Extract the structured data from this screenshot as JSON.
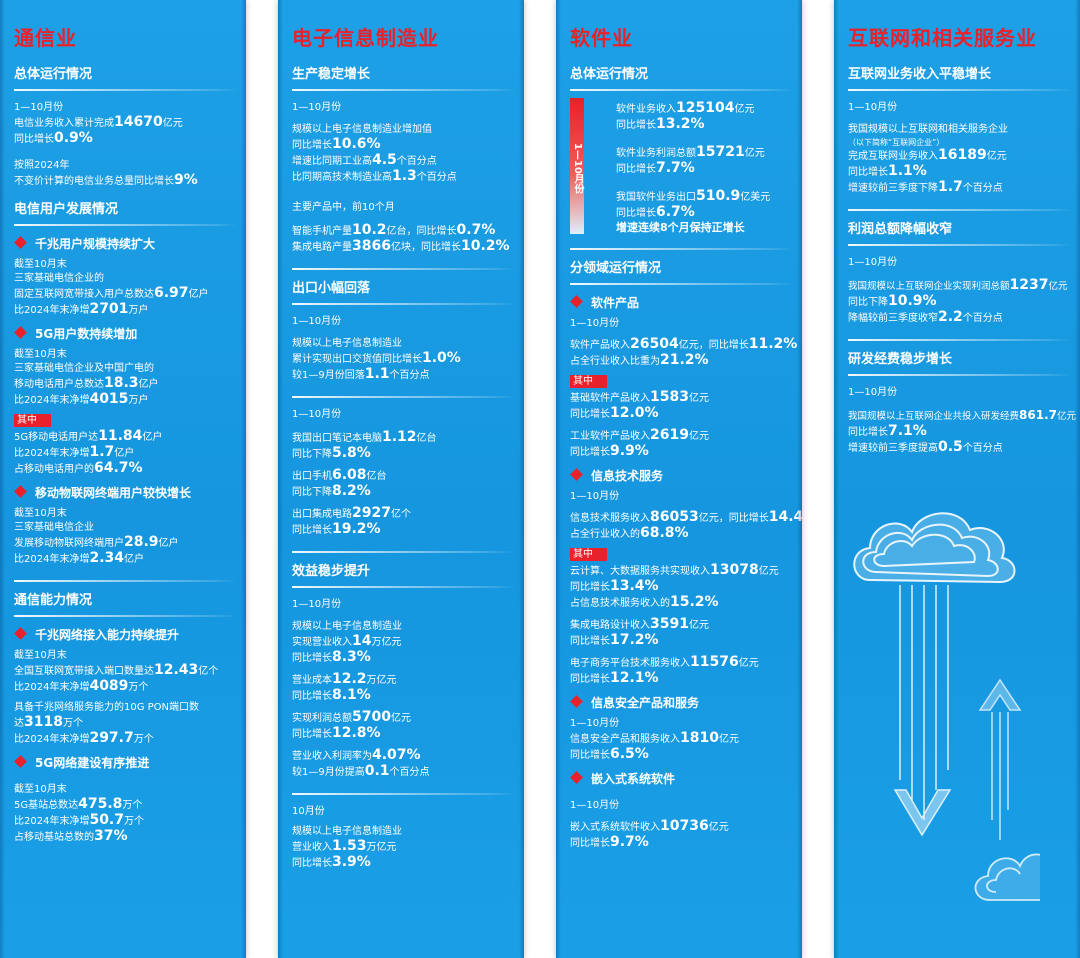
{
  "colors": {
    "column_bg": "#1596de",
    "accent_red": "#e8212b",
    "text": "#ffffff"
  },
  "icons": {
    "bullet": "red-diamond-icon",
    "decor": [
      "cloud-icon",
      "down-arrow-icon",
      "up-arrow-icon"
    ]
  },
  "col1": {
    "title": "通信业",
    "s1": {
      "title": "总体运行情况",
      "period": "1—10月份",
      "l1a": "电信业务收入累计完成",
      "l1b": "14670",
      "l1c": "亿元",
      "l2a": "同比增长",
      "l2b": "0.9%",
      "l3": "按照2024年",
      "l4a": "不变价计算的电信业务总量同比增长",
      "l4b": "9%"
    },
    "s2": {
      "title": "电信用户发展情况",
      "b1": "千兆用户规模持续扩大",
      "b1_l1": "截至10月末",
      "b1_l2": "三家基础电信企业的",
      "b1_l3a": "固定互联网宽带接入用户总数达",
      "b1_l3b": "6.97",
      "b1_l3c": "亿户",
      "b1_l4a": "比2024年末净增",
      "b1_l4b": "2701",
      "b1_l4c": "万户",
      "b2": "5G用户数持续增加",
      "b2_l1": "截至10月末",
      "b2_l2": "三家基础电信企业及中国广电的",
      "b2_l3a": "移动电话用户总数达",
      "b2_l3b": "18.3",
      "b2_l3c": "亿户",
      "b2_l4a": "比2024年末净增",
      "b2_l4b": "4015",
      "b2_l4c": "万户",
      "tag": "其中",
      "b2_l5a": "5G移动电话用户达",
      "b2_l5b": "11.84",
      "b2_l5c": "亿户",
      "b2_l6a": "比2024年末净增",
      "b2_l6b": "1.7",
      "b2_l6c": "亿户",
      "b2_l7a": "占移动电话用户的",
      "b2_l7b": "64.7%",
      "b3": "移动物联网终端用户较快增长",
      "b3_l1": "截至10月末",
      "b3_l2": "三家基础电信企业",
      "b3_l3a": "发展移动物联网终端用户",
      "b3_l3b": "28.9",
      "b3_l3c": "亿户",
      "b3_l4a": "比2024年末净增",
      "b3_l4b": "2.34",
      "b3_l4c": "亿户"
    },
    "s3": {
      "title": "通信能力情况",
      "b1": "千兆网络接入能力持续提升",
      "b1_l1": "截至10月末",
      "b1_l2a": "全国互联网宽带接入端口数量达",
      "b1_l2b": "12.43",
      "b1_l2c": "亿个",
      "b1_l3a": "比2024年末净增",
      "b1_l3b": "4089",
      "b1_l3c": "万个",
      "b1_l4": "具备千兆网络服务能力的10G PON端口数",
      "b1_l5a": "达",
      "b1_l5b": "3118",
      "b1_l5c": "万个",
      "b1_l6a": "比2024年末净增",
      "b1_l6b": "297.7",
      "b1_l6c": "万个",
      "b2": "5G网络建设有序推进",
      "b2_l1": "截至10月末",
      "b2_l2a": "5G基站总数达",
      "b2_l2b": "475.8",
      "b2_l2c": "万个",
      "b2_l3a": "比2024年末净增",
      "b2_l3b": "50.7",
      "b2_l3c": "万个",
      "b2_l4a": "占移动基站总数的",
      "b2_l4b": "37%"
    }
  },
  "col2": {
    "title": "电子信息制造业",
    "s1": {
      "title": "生产稳定增长",
      "period": "1—10月份",
      "l1": "规模以上电子信息制造业增加值",
      "l2a": "同比增长",
      "l2b": "10.6%",
      "l3a": "增速比同期工业高",
      "l3b": "4.5",
      "l3c": "个百分点",
      "l4a": "比同期高技术制造业高",
      "l4b": "1.3",
      "l4c": "个百分点",
      "sub": "主要产品中，前10个月",
      "l5a": "智能手机产量",
      "l5b": "10.2",
      "l5c": "亿台，同比增长",
      "l5d": "0.7%",
      "l6a": "集成电路产量",
      "l6b": "3866",
      "l6c": "亿块，同比增长",
      "l6d": "10.2%"
    },
    "s2": {
      "title": "出口小幅回落",
      "p1": "1—10月份",
      "l1": "规模以上电子信息制造业",
      "l2a": "累计实现出口交货值同比增长",
      "l2b": "1.0%",
      "l3a": "较1—9月份回落",
      "l3b": "1.1",
      "l3c": "个百分点",
      "p2": "1—10月份",
      "l4a": "我国出口笔记本电脑",
      "l4b": "1.12",
      "l4c": "亿台",
      "l5a": "同比下降",
      "l5b": "5.8%",
      "l6a": "出口手机",
      "l6b": "6.08",
      "l6c": "亿台",
      "l7a": "同比下降",
      "l7b": "8.2%",
      "l8a": "出口集成电路",
      "l8b": "2927",
      "l8c": "亿个",
      "l9a": "同比增长",
      "l9b": "19.2%"
    },
    "s3": {
      "title": "效益稳步提升",
      "p1": "1—10月份",
      "l1": "规模以上电子信息制造业",
      "l2a": "实现营业收入",
      "l2b": "14",
      "l2c": "万亿元",
      "l3a": "同比增长",
      "l3b": "8.3%",
      "l4a": "营业成本",
      "l4b": "12.2",
      "l4c": "万亿元",
      "l5a": "同比增长",
      "l5b": "8.1%",
      "l6a": "实现利润总额",
      "l6b": "5700",
      "l6c": "亿元",
      "l7a": "同比增长",
      "l7b": "12.8%",
      "l8a": "营业收入利润率为",
      "l8b": "4.07%",
      "l9a": "较1—9月份提高",
      "l9b": "0.1",
      "l9c": "个百分点",
      "p2": "10月份",
      "l10": "规模以上电子信息制造业",
      "l11a": "营业收入",
      "l11b": "1.53",
      "l11c": "万亿元",
      "l12a": "同比增长",
      "l12b": "3.9%"
    }
  },
  "col3": {
    "title": "软件业",
    "s1": {
      "title": "总体运行情况",
      "vlabel": "1—10月份",
      "l1a": "软件业务收入",
      "l1b": "125104",
      "l1c": "亿元",
      "l2a": "同比增长",
      "l2b": "13.2%",
      "l3a": "软件业务利润总额",
      "l3b": "15721",
      "l3c": "亿元",
      "l4a": "同比增长",
      "l4b": "7.7%",
      "l5a": "我国软件业务出口",
      "l5b": "510.9",
      "l5c": "亿美元",
      "l6a": "同比增长",
      "l6b": "6.7%",
      "l7": "增速连续8个月保持正增长"
    },
    "s2": {
      "title": "分领域运行情况",
      "b1": "软件产品",
      "b1_p": "1—10月份",
      "b1_l1a": "软件产品收入",
      "b1_l1b": "26504",
      "b1_l1c": "亿元，同比增长",
      "b1_l1d": "11.2%",
      "b1_l2a": "占全行业收入比重为",
      "b1_l2b": "21.2%",
      "tag1": "其中",
      "b1_l3a": "基础软件产品收入",
      "b1_l3b": "1583",
      "b1_l3c": "亿元",
      "b1_l4a": "同比增长",
      "b1_l4b": "12.0%",
      "b1_l5a": "工业软件产品收入",
      "b1_l5b": "2619",
      "b1_l5c": "亿元",
      "b1_l6a": "同比增长",
      "b1_l6b": "9.9%",
      "b2": "信息技术服务",
      "b2_p": "1—10月份",
      "b2_l1a": "信息技术服务收入",
      "b2_l1b": "86053",
      "b2_l1c": "亿元，同比增长",
      "b2_l1d": "14.4%",
      "b2_l2a": "占全行业收入的",
      "b2_l2b": "68.8%",
      "tag2": "其中",
      "b2_l3a": "云计算、大数据服务共实现收入",
      "b2_l3b": "13078",
      "b2_l3c": "亿元",
      "b2_l4a": "同比增长",
      "b2_l4b": "13.4%",
      "b2_l5a": "占信息技术服务收入的",
      "b2_l5b": "15.2%",
      "b2_l6a": "集成电路设计收入",
      "b2_l6b": "3591",
      "b2_l6c": "亿元",
      "b2_l7a": "同比增长",
      "b2_l7b": "17.2%",
      "b2_l8a": "电子商务平台技术服务收入",
      "b2_l8b": "11576",
      "b2_l8c": "亿元",
      "b2_l9a": "同比增长",
      "b2_l9b": "12.1%",
      "b3": "信息安全产品和服务",
      "b3_p": "1—10月份",
      "b3_l1a": "信息安全产品和服务收入",
      "b3_l1b": "1810",
      "b3_l1c": "亿元",
      "b3_l2a": "同比增长",
      "b3_l2b": "6.5%",
      "b4": "嵌入式系统软件",
      "b4_p": "1—10月份",
      "b4_l1a": "嵌入式系统软件收入",
      "b4_l1b": "10736",
      "b4_l1c": "亿元",
      "b4_l2a": "同比增长",
      "b4_l2b": "9.7%"
    }
  },
  "col4": {
    "title": "互联网和相关服务业",
    "s1": {
      "title": "互联网业务收入平稳增长",
      "period": "1—10月份",
      "l1": "我国规模以上互联网和相关服务企业",
      "l2": "（以下简称“互联网企业”）",
      "l3a": "完成互联网业务收入",
      "l3b": "16189",
      "l3c": "亿元",
      "l4a": "同比增长",
      "l4b": "1.1%",
      "l5a": "增速较前三季度下降",
      "l5b": "1.7",
      "l5c": "个百分点"
    },
    "s2": {
      "title": "利润总额降幅收窄",
      "period": "1—10月份",
      "l1a": "我国规模以上互联网企业实现利润总额",
      "l1b": "1237",
      "l1c": "亿元",
      "l2a": "同比下降",
      "l2b": "10.9%",
      "l3a": "降幅较前三季度收窄",
      "l3b": "2.2",
      "l3c": "个百分点"
    },
    "s3": {
      "title": "研发经费稳步增长",
      "period": "1—10月份",
      "l1a": "我国规模以上互联网企业共投入研发经费",
      "l1b": "861.7",
      "l1c": "亿元",
      "l2a": "同比增长",
      "l2b": "7.1%",
      "l3a": "增速较前三季度提高",
      "l3b": "0.5",
      "l3c": "个百分点"
    }
  }
}
